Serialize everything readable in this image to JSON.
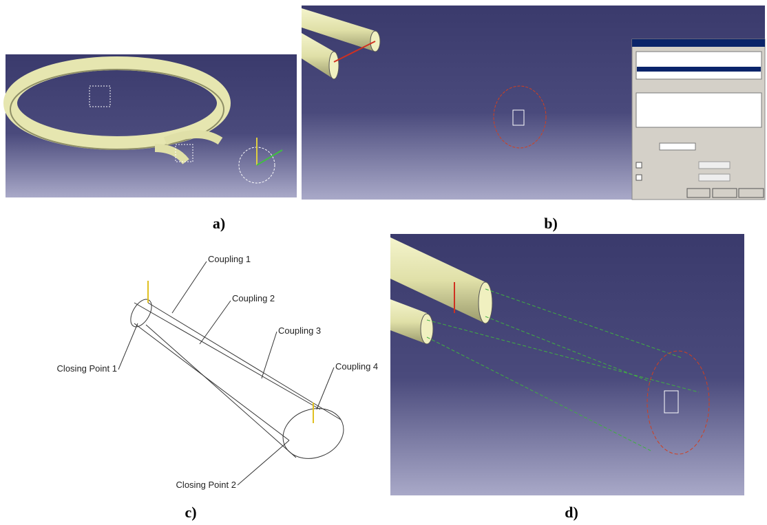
{
  "panels": [
    {
      "label": "a)"
    },
    {
      "label": "b)"
    },
    {
      "label": "c)",
      "annotations": [
        "Coupling 1",
        "Coupling 2",
        "Coupling 3",
        "Coupling 4",
        "Closing Point 1",
        "Closing Point 2"
      ]
    },
    {
      "label": "d)"
    }
  ]
}
